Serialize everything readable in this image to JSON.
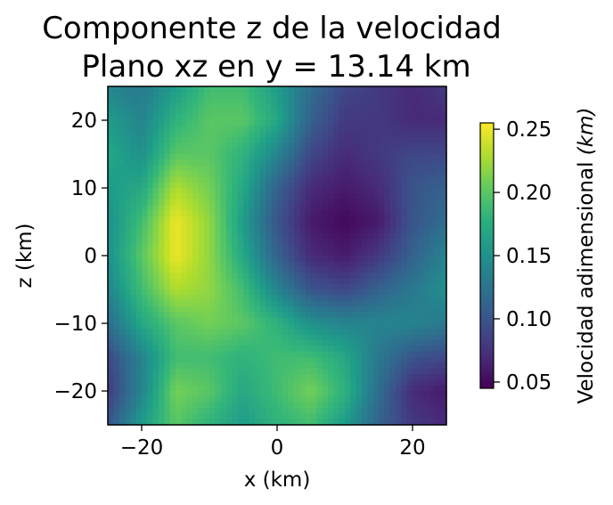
{
  "chart_data": {
    "type": "heatmap",
    "title": [
      "Componente z de la velocidad",
      "Plano xz en y = 13.14 km"
    ],
    "xlabel": "x (km)",
    "ylabel": "z (km)",
    "colorbar_label": "Velocidad adimensional (km)",
    "colorbar_label_parts": {
      "text": "Velocidad adimensional ",
      "math": "(km)"
    },
    "colormap": "viridis",
    "xlim": [
      -25,
      25
    ],
    "ylim": [
      -25,
      25
    ],
    "vmin": 0.045,
    "vmax": 0.255,
    "x_ticks": [
      -20,
      0,
      20
    ],
    "x_tick_labels": [
      "−20",
      "0",
      "20"
    ],
    "y_ticks": [
      -20,
      -10,
      0,
      10,
      20
    ],
    "y_tick_labels": [
      "−20",
      "−10",
      "0",
      "10",
      "20"
    ],
    "cbar_ticks": [
      0.05,
      0.1,
      0.15,
      0.2,
      0.25
    ],
    "cbar_tick_labels": [
      "0.05",
      "0.10",
      "0.15",
      "0.20",
      "0.25"
    ],
    "grid_x": [
      -25,
      -20,
      -15,
      -10,
      -5,
      0,
      5,
      10,
      15,
      20,
      25
    ],
    "grid_z": [
      25,
      20,
      15,
      10,
      5,
      0,
      -5,
      -10,
      -15,
      -20,
      -25
    ],
    "values": [
      [
        0.14,
        0.13,
        0.16,
        0.19,
        0.19,
        0.16,
        0.12,
        0.09,
        0.08,
        0.07,
        0.08
      ],
      [
        0.16,
        0.14,
        0.18,
        0.2,
        0.2,
        0.17,
        0.11,
        0.08,
        0.08,
        0.07,
        0.07
      ],
      [
        0.17,
        0.15,
        0.2,
        0.2,
        0.18,
        0.14,
        0.09,
        0.07,
        0.08,
        0.09,
        0.09
      ],
      [
        0.16,
        0.17,
        0.23,
        0.21,
        0.17,
        0.11,
        0.07,
        0.06,
        0.07,
        0.1,
        0.11
      ],
      [
        0.15,
        0.19,
        0.25,
        0.22,
        0.16,
        0.1,
        0.06,
        0.05,
        0.06,
        0.1,
        0.12
      ],
      [
        0.15,
        0.2,
        0.25,
        0.22,
        0.17,
        0.11,
        0.07,
        0.06,
        0.08,
        0.11,
        0.14
      ],
      [
        0.14,
        0.19,
        0.23,
        0.22,
        0.19,
        0.14,
        0.1,
        0.09,
        0.11,
        0.13,
        0.15
      ],
      [
        0.12,
        0.17,
        0.2,
        0.21,
        0.2,
        0.18,
        0.15,
        0.14,
        0.14,
        0.14,
        0.13
      ],
      [
        0.09,
        0.14,
        0.19,
        0.19,
        0.18,
        0.19,
        0.19,
        0.17,
        0.13,
        0.1,
        0.09
      ],
      [
        0.08,
        0.14,
        0.21,
        0.2,
        0.17,
        0.19,
        0.21,
        0.18,
        0.12,
        0.07,
        0.06
      ],
      [
        0.1,
        0.16,
        0.2,
        0.18,
        0.16,
        0.18,
        0.19,
        0.16,
        0.11,
        0.08,
        0.07
      ]
    ]
  }
}
